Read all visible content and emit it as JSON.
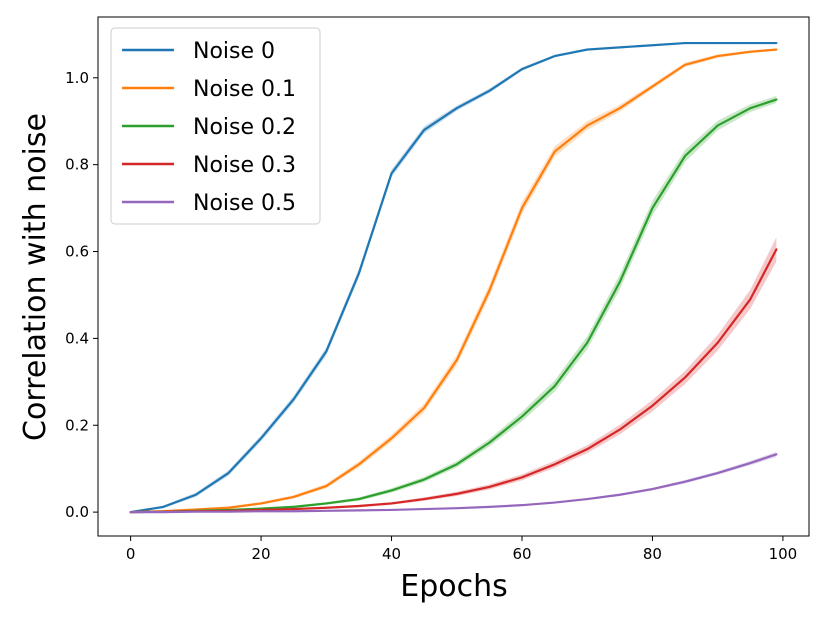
{
  "chart_data": {
    "type": "line",
    "title": "",
    "xlabel": "Epochs",
    "ylabel": "Correlation with noise",
    "xlim": [
      -5,
      104
    ],
    "ylim": [
      -0.055,
      1.14
    ],
    "xticks": [
      0,
      20,
      40,
      60,
      80,
      100
    ],
    "yticks": [
      0.0,
      0.2,
      0.4,
      0.6,
      0.8,
      1.0
    ],
    "xtick_labels": [
      "0",
      "20",
      "40",
      "60",
      "80",
      "100"
    ],
    "ytick_labels": [
      "0.0",
      "0.2",
      "0.4",
      "0.6",
      "0.8",
      "1.0"
    ],
    "grid": false,
    "legend_position": "top-left",
    "x": [
      0,
      5,
      10,
      15,
      20,
      25,
      30,
      35,
      40,
      45,
      50,
      55,
      60,
      65,
      70,
      75,
      80,
      85,
      90,
      95,
      99
    ],
    "series": [
      {
        "name": "Noise 0",
        "color": "#1f77b4",
        "values": [
          0.0,
          0.012,
          0.04,
          0.09,
          0.17,
          0.26,
          0.37,
          0.55,
          0.78,
          0.88,
          0.93,
          0.97,
          1.02,
          1.05,
          1.065,
          1.07,
          1.075,
          1.08,
          1.08,
          1.08,
          1.08
        ],
        "band": [
          0.0,
          0.003,
          0.005,
          0.006,
          0.007,
          0.008,
          0.009,
          0.01,
          0.009,
          0.008,
          0.006,
          0.005,
          0.004,
          0.003,
          0.003,
          0.002,
          0.002,
          0.002,
          0.002,
          0.002,
          0.002
        ]
      },
      {
        "name": "Noise 0.1",
        "color": "#ff7f0e",
        "values": [
          0.0,
          0.002,
          0.006,
          0.01,
          0.02,
          0.035,
          0.06,
          0.11,
          0.17,
          0.24,
          0.35,
          0.51,
          0.7,
          0.83,
          0.89,
          0.93,
          0.98,
          1.03,
          1.05,
          1.06,
          1.065
        ],
        "band": [
          0.0,
          0.001,
          0.002,
          0.003,
          0.003,
          0.004,
          0.005,
          0.007,
          0.008,
          0.01,
          0.012,
          0.014,
          0.014,
          0.012,
          0.01,
          0.008,
          0.006,
          0.005,
          0.004,
          0.003,
          0.003
        ]
      },
      {
        "name": "Noise 0.2",
        "color": "#2ca02c",
        "values": [
          0.0,
          0.001,
          0.003,
          0.005,
          0.008,
          0.012,
          0.02,
          0.03,
          0.05,
          0.075,
          0.11,
          0.16,
          0.22,
          0.29,
          0.39,
          0.53,
          0.7,
          0.82,
          0.89,
          0.93,
          0.95
        ],
        "band": [
          0.0,
          0.001,
          0.001,
          0.002,
          0.002,
          0.003,
          0.003,
          0.004,
          0.005,
          0.006,
          0.007,
          0.009,
          0.011,
          0.013,
          0.015,
          0.017,
          0.017,
          0.014,
          0.011,
          0.009,
          0.008
        ]
      },
      {
        "name": "Noise 0.3",
        "color": "#d62728",
        "values": [
          0.0,
          0.001,
          0.002,
          0.003,
          0.005,
          0.007,
          0.01,
          0.014,
          0.02,
          0.03,
          0.042,
          0.058,
          0.08,
          0.11,
          0.145,
          0.19,
          0.245,
          0.31,
          0.39,
          0.49,
          0.605
        ],
        "band": [
          0.0,
          0.0,
          0.001,
          0.001,
          0.001,
          0.002,
          0.002,
          0.003,
          0.003,
          0.004,
          0.005,
          0.006,
          0.007,
          0.008,
          0.009,
          0.011,
          0.013,
          0.015,
          0.018,
          0.022,
          0.028
        ]
      },
      {
        "name": "Noise 0.5",
        "color": "#9467bd",
        "values": [
          0.0,
          0.0,
          0.001,
          0.001,
          0.002,
          0.002,
          0.003,
          0.004,
          0.005,
          0.007,
          0.009,
          0.012,
          0.016,
          0.022,
          0.03,
          0.04,
          0.053,
          0.07,
          0.09,
          0.113,
          0.133
        ],
        "band": [
          0.0,
          0.0,
          0.0,
          0.0,
          0.0,
          0.001,
          0.001,
          0.001,
          0.001,
          0.001,
          0.001,
          0.002,
          0.002,
          0.002,
          0.002,
          0.003,
          0.003,
          0.004,
          0.004,
          0.005,
          0.006
        ]
      }
    ]
  }
}
